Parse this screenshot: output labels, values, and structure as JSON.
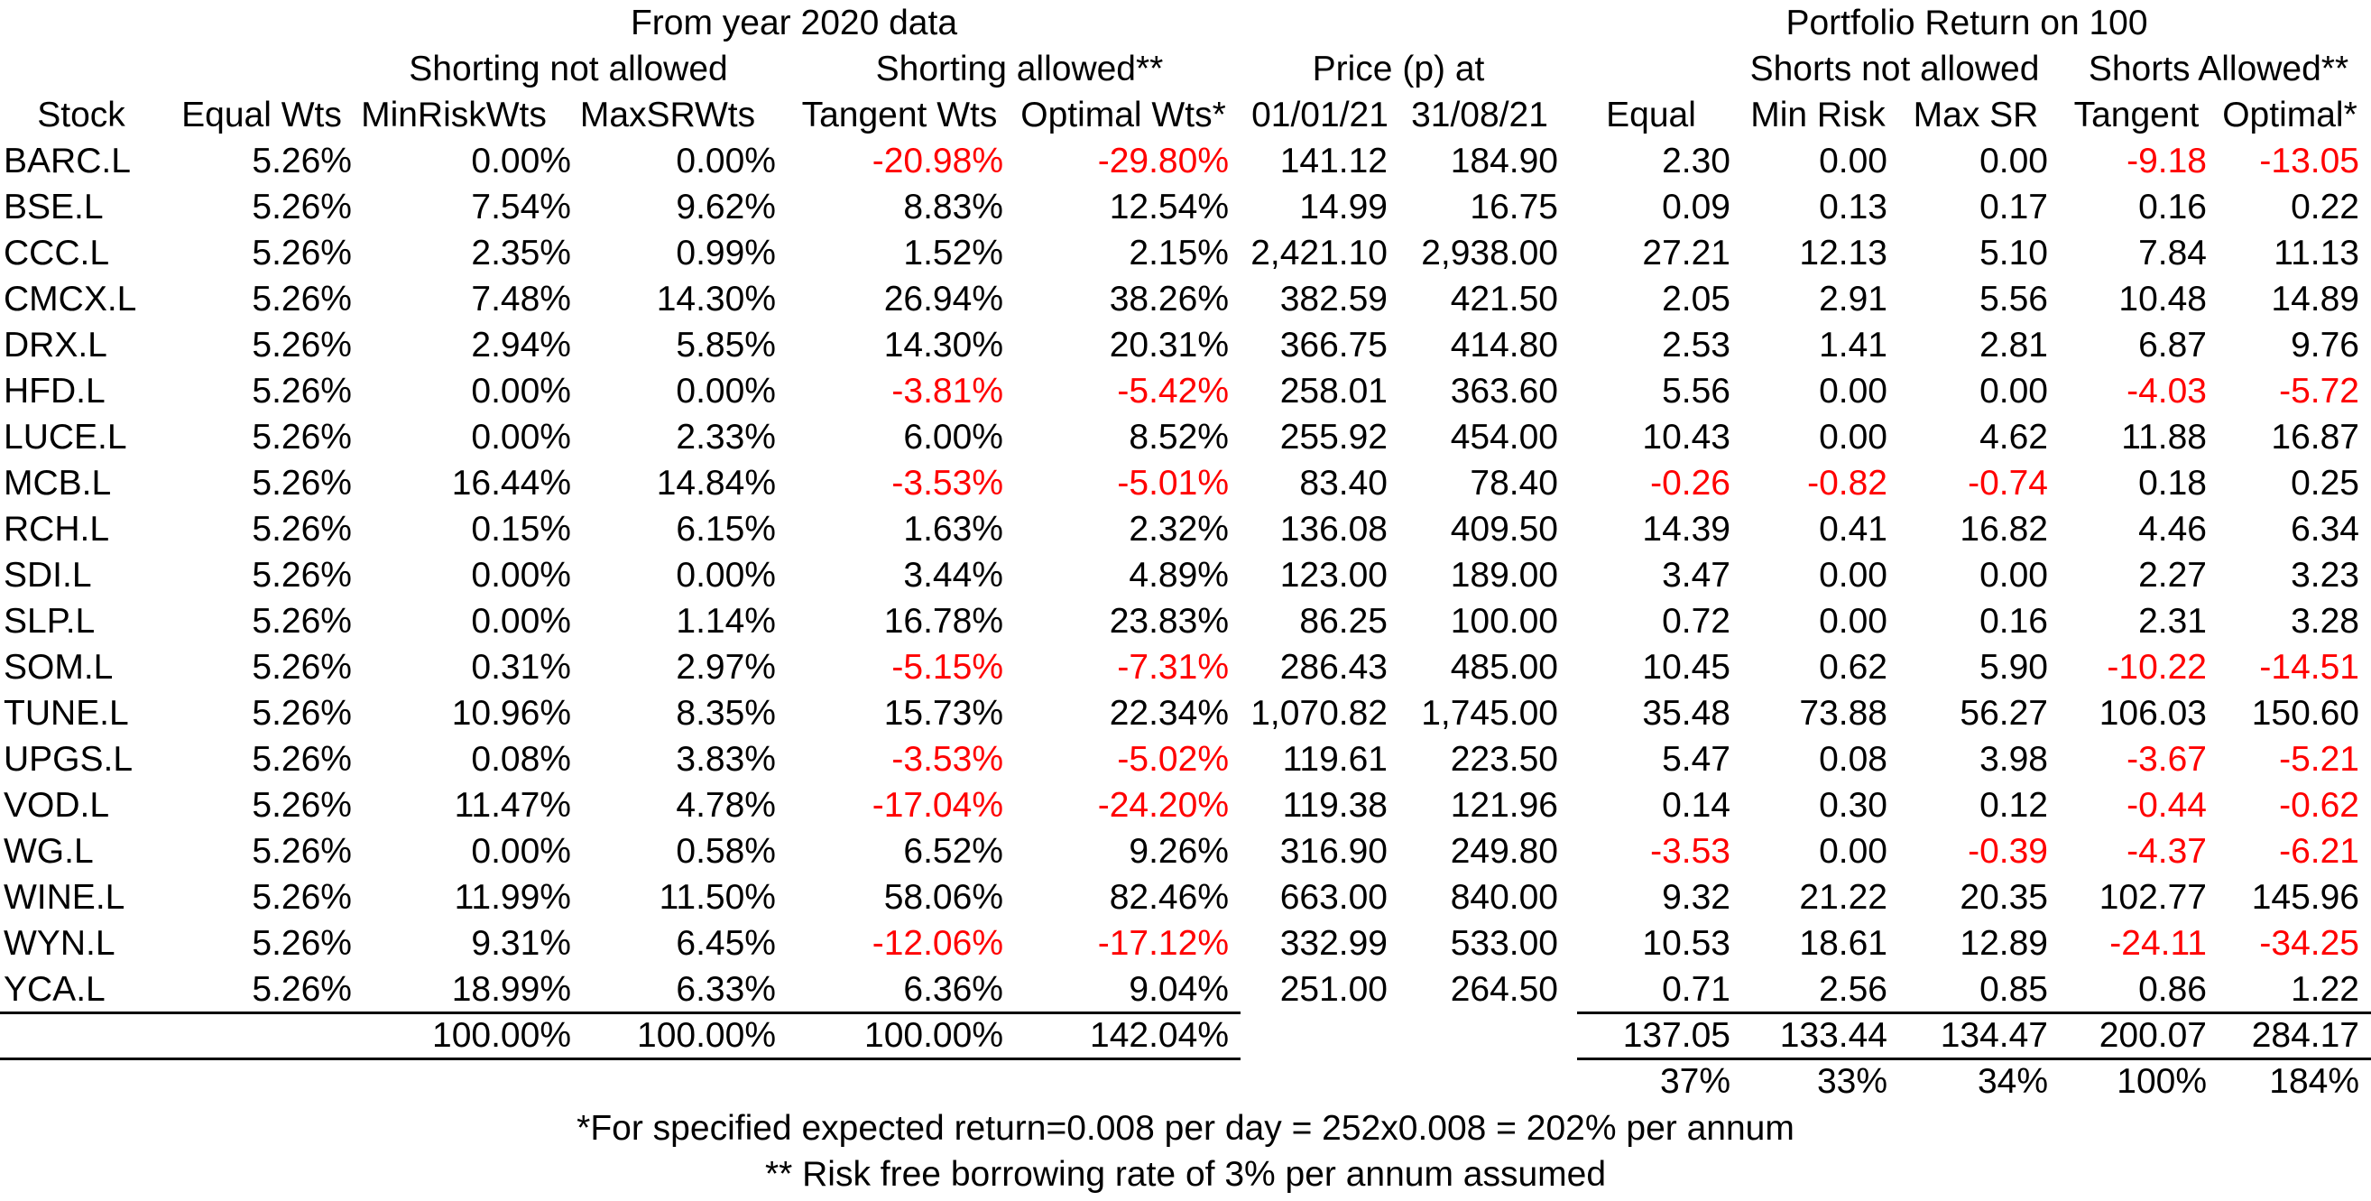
{
  "header": {
    "group_from_2020": "From year 2020 data",
    "group_portfolio_return": "Portfolio Return on 100",
    "shorting_not_allowed": "Shorting not allowed",
    "shorting_allowed": "Shorting allowed**",
    "price_at": "Price (p) at",
    "shorts_not_allowed": "Shorts not allowed",
    "shorts_allowed": "Shorts Allowed**"
  },
  "columns": [
    "Stock",
    "Equal Wts",
    "MinRiskWts",
    "MaxSRWts",
    "Tangent Wts",
    "Optimal Wts*",
    "01/01/21",
    "31/08/21",
    "Equal",
    "Min Risk",
    "Max SR",
    "Tangent",
    "Optimal*"
  ],
  "rows": [
    [
      "BARC.L",
      "5.26%",
      "0.00%",
      "0.00%",
      "-20.98%",
      "-29.80%",
      "141.12",
      "184.90",
      "2.30",
      "0.00",
      "0.00",
      "-9.18",
      "-13.05"
    ],
    [
      "BSE.L",
      "5.26%",
      "7.54%",
      "9.62%",
      "8.83%",
      "12.54%",
      "14.99",
      "16.75",
      "0.09",
      "0.13",
      "0.17",
      "0.16",
      "0.22"
    ],
    [
      "CCC.L",
      "5.26%",
      "2.35%",
      "0.99%",
      "1.52%",
      "2.15%",
      "2,421.10",
      "2,938.00",
      "27.21",
      "12.13",
      "5.10",
      "7.84",
      "11.13"
    ],
    [
      "CMCX.L",
      "5.26%",
      "7.48%",
      "14.30%",
      "26.94%",
      "38.26%",
      "382.59",
      "421.50",
      "2.05",
      "2.91",
      "5.56",
      "10.48",
      "14.89"
    ],
    [
      "DRX.L",
      "5.26%",
      "2.94%",
      "5.85%",
      "14.30%",
      "20.31%",
      "366.75",
      "414.80",
      "2.53",
      "1.41",
      "2.81",
      "6.87",
      "9.76"
    ],
    [
      "HFD.L",
      "5.26%",
      "0.00%",
      "0.00%",
      "-3.81%",
      "-5.42%",
      "258.01",
      "363.60",
      "5.56",
      "0.00",
      "0.00",
      "-4.03",
      "-5.72"
    ],
    [
      "LUCE.L",
      "5.26%",
      "0.00%",
      "2.33%",
      "6.00%",
      "8.52%",
      "255.92",
      "454.00",
      "10.43",
      "0.00",
      "4.62",
      "11.88",
      "16.87"
    ],
    [
      "MCB.L",
      "5.26%",
      "16.44%",
      "14.84%",
      "-3.53%",
      "-5.01%",
      "83.40",
      "78.40",
      "-0.26",
      "-0.82",
      "-0.74",
      "0.18",
      "0.25"
    ],
    [
      "RCH.L",
      "5.26%",
      "0.15%",
      "6.15%",
      "1.63%",
      "2.32%",
      "136.08",
      "409.50",
      "14.39",
      "0.41",
      "16.82",
      "4.46",
      "6.34"
    ],
    [
      "SDI.L",
      "5.26%",
      "0.00%",
      "0.00%",
      "3.44%",
      "4.89%",
      "123.00",
      "189.00",
      "3.47",
      "0.00",
      "0.00",
      "2.27",
      "3.23"
    ],
    [
      "SLP.L",
      "5.26%",
      "0.00%",
      "1.14%",
      "16.78%",
      "23.83%",
      "86.25",
      "100.00",
      "0.72",
      "0.00",
      "0.16",
      "2.31",
      "3.28"
    ],
    [
      "SOM.L",
      "5.26%",
      "0.31%",
      "2.97%",
      "-5.15%",
      "-7.31%",
      "286.43",
      "485.00",
      "10.45",
      "0.62",
      "5.90",
      "-10.22",
      "-14.51"
    ],
    [
      "TUNE.L",
      "5.26%",
      "10.96%",
      "8.35%",
      "15.73%",
      "22.34%",
      "1,070.82",
      "1,745.00",
      "35.48",
      "73.88",
      "56.27",
      "106.03",
      "150.60"
    ],
    [
      "UPGS.L",
      "5.26%",
      "0.08%",
      "3.83%",
      "-3.53%",
      "-5.02%",
      "119.61",
      "223.50",
      "5.47",
      "0.08",
      "3.98",
      "-3.67",
      "-5.21"
    ],
    [
      "VOD.L",
      "5.26%",
      "11.47%",
      "4.78%",
      "-17.04%",
      "-24.20%",
      "119.38",
      "121.96",
      "0.14",
      "0.30",
      "0.12",
      "-0.44",
      "-0.62"
    ],
    [
      "WG.L",
      "5.26%",
      "0.00%",
      "0.58%",
      "6.52%",
      "9.26%",
      "316.90",
      "249.80",
      "-3.53",
      "0.00",
      "-0.39",
      "-4.37",
      "-6.21"
    ],
    [
      "WINE.L",
      "5.26%",
      "11.99%",
      "11.50%",
      "58.06%",
      "82.46%",
      "663.00",
      "840.00",
      "9.32",
      "21.22",
      "20.35",
      "102.77",
      "145.96"
    ],
    [
      "WYN.L",
      "5.26%",
      "9.31%",
      "6.45%",
      "-12.06%",
      "-17.12%",
      "332.99",
      "533.00",
      "10.53",
      "18.61",
      "12.89",
      "-24.11",
      "-34.25"
    ],
    [
      "YCA.L",
      "5.26%",
      "18.99%",
      "6.33%",
      "6.36%",
      "9.04%",
      "251.00",
      "264.50",
      "0.71",
      "2.56",
      "0.85",
      "0.86",
      "1.22"
    ]
  ],
  "totals": [
    "",
    "",
    "100.00%",
    "100.00%",
    "100.00%",
    "142.04%",
    "",
    "",
    "137.05",
    "133.44",
    "134.47",
    "200.07",
    "284.17"
  ],
  "percent_returns": [
    "",
    "",
    "",
    "",
    "",
    "",
    "",
    "",
    "37%",
    "33%",
    "34%",
    "100%",
    "184%"
  ],
  "footnotes": {
    "note1": "*For specified expected return=0.008 per day = 252x0.008 = 202% per annum",
    "note2": "** Risk free borrowing rate of 3% per annum assumed"
  },
  "colors": {
    "negative": "#ff0000",
    "text": "#000000",
    "background": "#ffffff"
  }
}
